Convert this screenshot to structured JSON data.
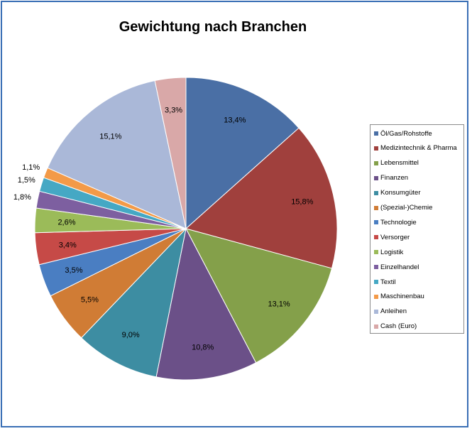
{
  "chart_data": {
    "type": "pie",
    "title": "Gewichtung nach Branchen",
    "legend_position": "right",
    "slices": [
      {
        "label": "Öl/Gas/Rohstoffe",
        "value": 13.4,
        "display": "13,4%",
        "color": "#4a6fa5"
      },
      {
        "label": "Medizintechnik & Pharma",
        "value": 15.8,
        "display": "15,8%",
        "color": "#a0403d"
      },
      {
        "label": "Lebensmittel",
        "value": 13.1,
        "display": "13,1%",
        "color": "#84a04a"
      },
      {
        "label": "Finanzen",
        "value": 10.8,
        "display": "10,8%",
        "color": "#6b5088"
      },
      {
        "label": "Konsumgüter",
        "value": 9.0,
        "display": "9,0%",
        "color": "#3d8da2"
      },
      {
        "label": "(Spezial-)Chemie",
        "value": 5.5,
        "display": "5,5%",
        "color": "#d07c35"
      },
      {
        "label": "Technologie",
        "value": 3.5,
        "display": "3,5%",
        "color": "#4a7ec2"
      },
      {
        "label": "Versorger",
        "value": 3.4,
        "display": "3,4%",
        "color": "#c64a47"
      },
      {
        "label": "Logistik",
        "value": 2.6,
        "display": "2,6%",
        "color": "#9bbb59"
      },
      {
        "label": "Einzelhandel",
        "value": 1.8,
        "display": "1,8%",
        "color": "#7d5fa0"
      },
      {
        "label": "Textil",
        "value": 1.5,
        "display": "1,5%",
        "color": "#45a8c4"
      },
      {
        "label": "Maschinenbau",
        "value": 1.1,
        "display": "1,1%",
        "color": "#f39a48"
      },
      {
        "label": "Anleihen",
        "value": 15.1,
        "display": "15,1%",
        "color": "#aab8d8"
      },
      {
        "label": "Cash (Euro)",
        "value": 3.3,
        "display": "3,3%",
        "color": "#d9a8a8"
      }
    ]
  }
}
